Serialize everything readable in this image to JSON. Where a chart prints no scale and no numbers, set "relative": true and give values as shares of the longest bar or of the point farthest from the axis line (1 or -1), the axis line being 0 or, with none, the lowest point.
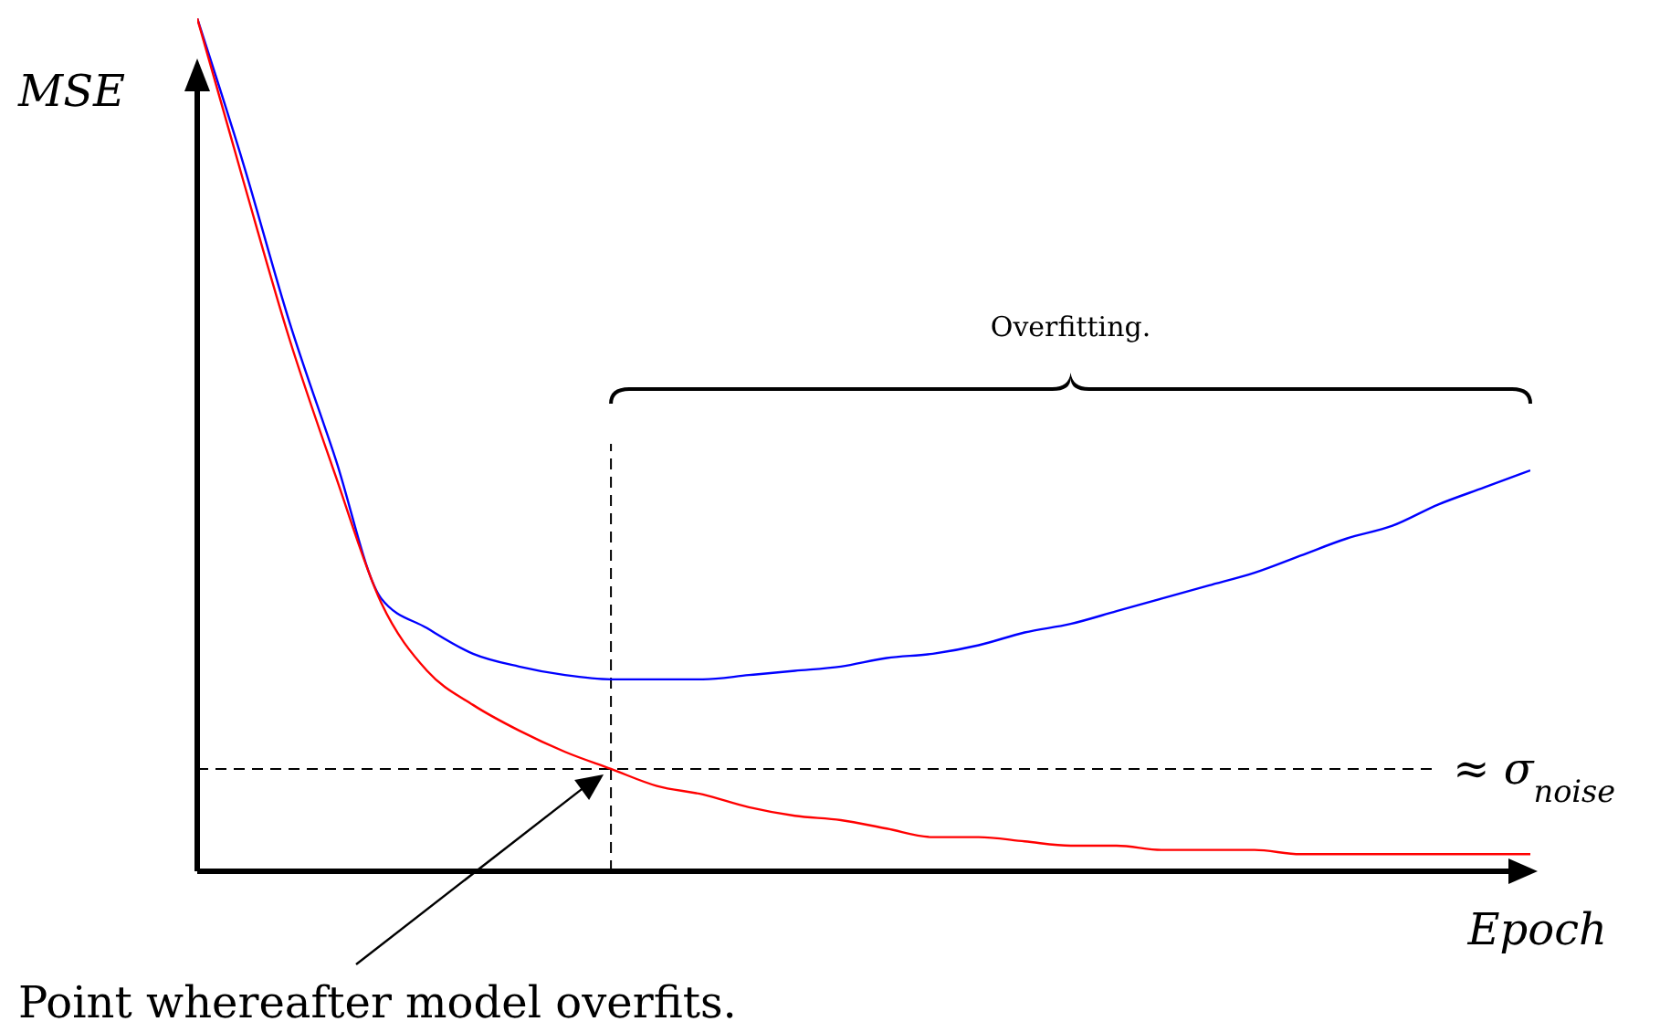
{
  "chart_data": {
    "type": "line",
    "relative": true,
    "xlabel": "Epoch",
    "ylabel": "MSE",
    "categories": [
      null,
      null,
      null,
      null,
      null,
      null,
      null,
      null,
      null,
      null,
      null,
      null,
      null,
      null,
      null,
      null,
      null,
      null,
      null,
      null,
      null,
      null,
      null,
      null,
      null,
      null,
      null,
      null,
      null,
      null
    ],
    "series": [
      {
        "color": "#0000ff",
        "values": [
          1,
          0.83,
          0.645,
          0.485,
          0.32,
          0.285,
          0.255,
          0.24,
          0.23,
          0.225,
          0.225,
          0.225,
          0.23,
          0.235,
          0.24,
          0.25,
          0.255,
          0.265,
          0.28,
          0.29,
          0.305,
          0.32,
          0.335,
          0.35,
          0.37,
          0.39,
          0.405,
          0.43,
          0.45,
          0.47
        ]
      },
      {
        "color": "#ff0000",
        "values": [
          1,
          0.81,
          0.625,
          0.465,
          0.315,
          0.235,
          0.195,
          0.165,
          0.14,
          0.12,
          0.1,
          0.09,
          0.075,
          0.065,
          0.06,
          0.05,
          0.04,
          0.04,
          0.035,
          0.03,
          0.03,
          0.025,
          0.025,
          0.025,
          0.02,
          0.02,
          0.02,
          0.02,
          0.02,
          0.02
        ]
      }
    ],
    "ref_lines": [
      {
        "axis": "y",
        "value": 0.12,
        "label": "≈ σ$_{noise}$",
        "line_style": "dashed"
      }
    ],
    "annotations": [
      "Overfitting.",
      "Point whereafter model overfits."
    ],
    "marker": "none",
    "line_style": "solid"
  }
}
